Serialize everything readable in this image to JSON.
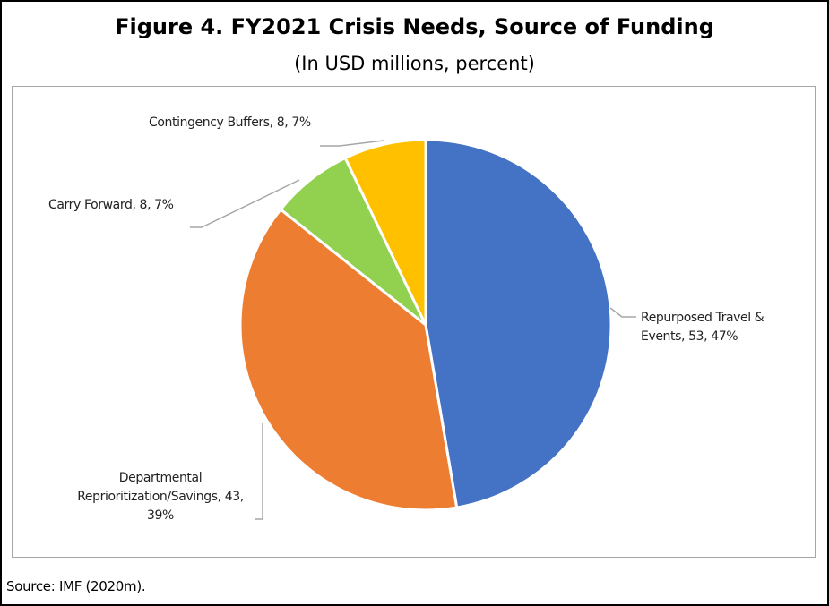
{
  "figure": {
    "title": "Figure 4. FY2021 Crisis Needs, Source of Funding",
    "subtitle": "(In USD millions, percent)",
    "source": "Source: IMF (2020m)."
  },
  "chart_data": {
    "type": "pie",
    "title": "Figure 4. FY2021 Crisis Needs, Source of Funding",
    "subtitle": "(In USD millions, percent)",
    "start_angle_deg": 0,
    "direction": "clockwise",
    "slices": [
      {
        "key": "travel",
        "label_lines": [
          "Repurposed Travel &",
          "Events, 53, 47%"
        ],
        "value": 53,
        "percent": 47,
        "color": "#4472C4"
      },
      {
        "key": "dept",
        "label_lines": [
          "Departmental",
          "Reprioritization/Savings, 43,",
          "39%"
        ],
        "value": 43,
        "percent": 39,
        "color": "#ED7D31"
      },
      {
        "key": "carry",
        "label_lines": [
          "Carry Forward, 8, 7%"
        ],
        "value": 8,
        "percent": 7,
        "color": "#92D050"
      },
      {
        "key": "buffers",
        "label_lines": [
          "Contingency Buffers, 8, 7%"
        ],
        "value": 8,
        "percent": 7,
        "color": "#FFC000"
      }
    ]
  }
}
